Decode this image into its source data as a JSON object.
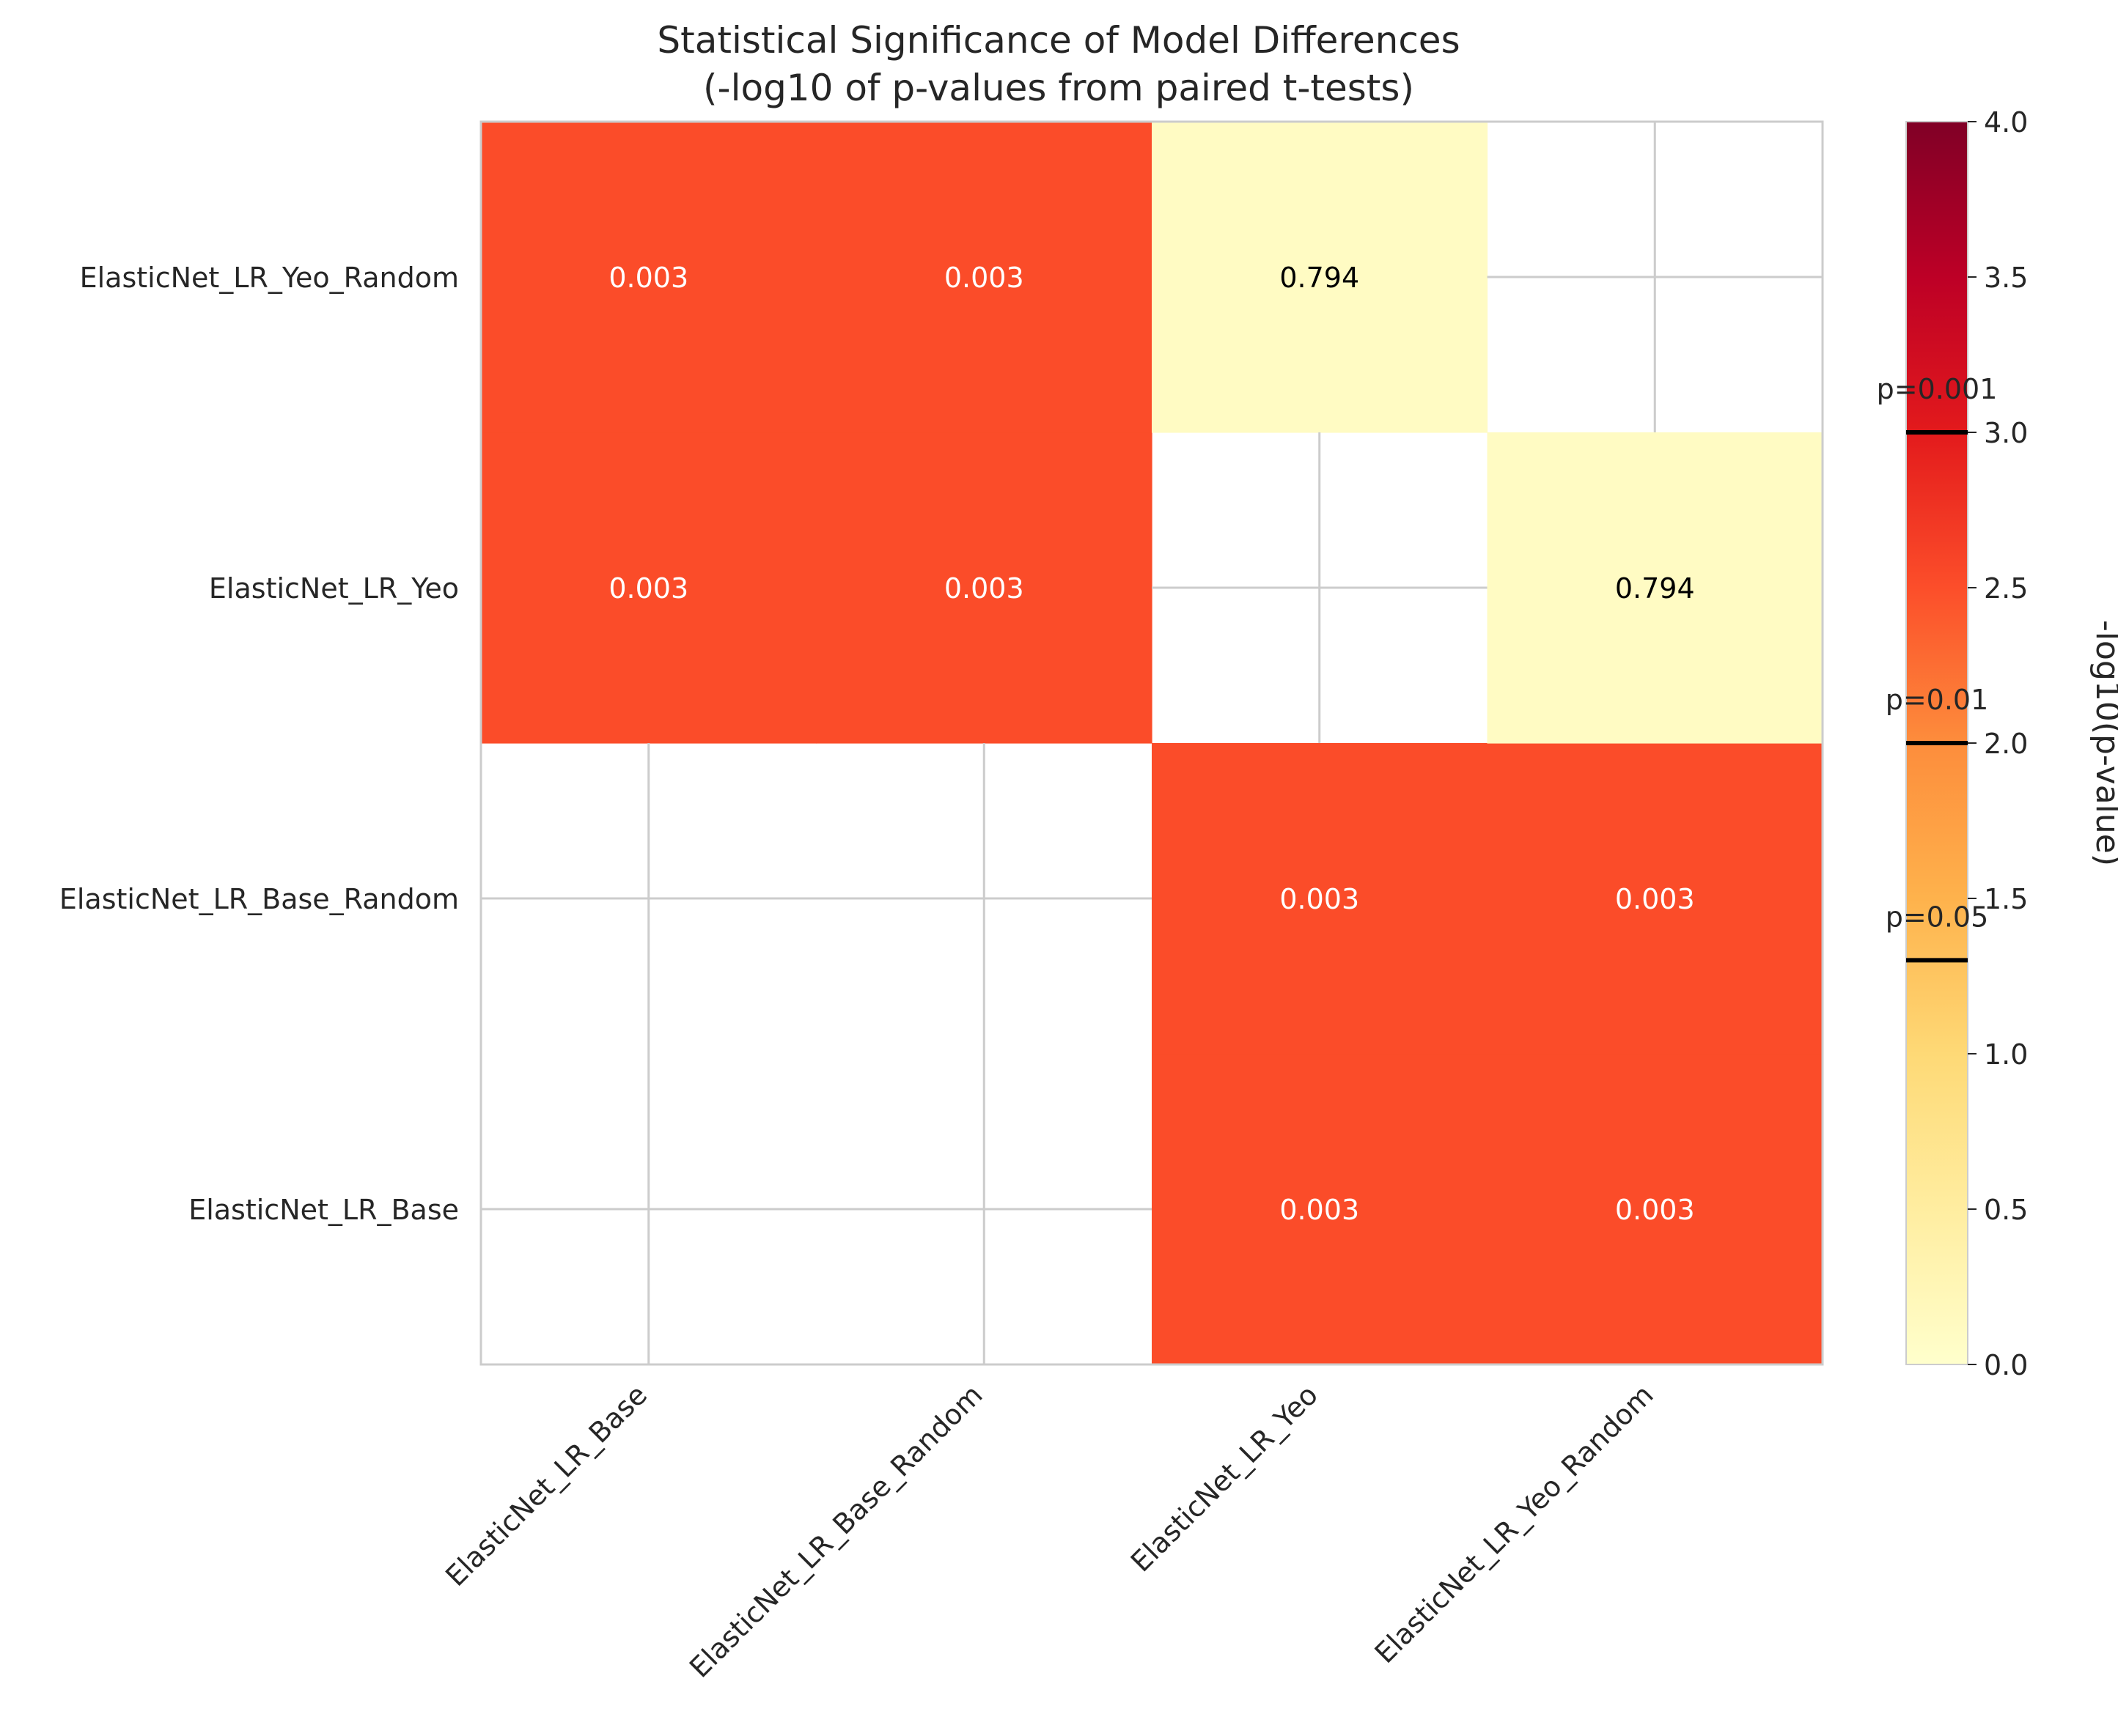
{
  "chart_data": {
    "type": "heatmap",
    "title_lines": [
      "Statistical Significance of Model Differences",
      "(-log10 of p-values from paired t-tests)"
    ],
    "x_categories": [
      "ElasticNet_LR_Base",
      "ElasticNet_LR_Base_Random",
      "ElasticNet_LR_Yeo",
      "ElasticNet_LR_Yeo_Random"
    ],
    "y_categories": [
      "ElasticNet_LR_Base",
      "ElasticNet_LR_Base_Random",
      "ElasticNet_LR_Yeo",
      "ElasticNet_LR_Yeo_Random"
    ],
    "cells": [
      {
        "x": "ElasticNet_LR_Yeo",
        "y": "ElasticNet_LR_Base",
        "p_value": "0.003",
        "value": 2.52
      },
      {
        "x": "ElasticNet_LR_Yeo_Random",
        "y": "ElasticNet_LR_Base",
        "p_value": "0.003",
        "value": 2.52
      },
      {
        "x": "ElasticNet_LR_Yeo",
        "y": "ElasticNet_LR_Base_Random",
        "p_value": "0.003",
        "value": 2.52
      },
      {
        "x": "ElasticNet_LR_Yeo_Random",
        "y": "ElasticNet_LR_Base_Random",
        "p_value": "0.003",
        "value": 2.52
      },
      {
        "x": "ElasticNet_LR_Base",
        "y": "ElasticNet_LR_Yeo",
        "p_value": "0.003",
        "value": 2.52
      },
      {
        "x": "ElasticNet_LR_Base_Random",
        "y": "ElasticNet_LR_Yeo",
        "p_value": "0.003",
        "value": 2.52
      },
      {
        "x": "ElasticNet_LR_Yeo_Random",
        "y": "ElasticNet_LR_Yeo",
        "p_value": "0.794",
        "value": 0.1
      },
      {
        "x": "ElasticNet_LR_Base",
        "y": "ElasticNet_LR_Yeo_Random",
        "p_value": "0.003",
        "value": 2.52
      },
      {
        "x": "ElasticNet_LR_Base_Random",
        "y": "ElasticNet_LR_Yeo_Random",
        "p_value": "0.003",
        "value": 2.52
      },
      {
        "x": "ElasticNet_LR_Yeo",
        "y": "ElasticNet_LR_Yeo_Random",
        "p_value": "0.794",
        "value": 0.1
      }
    ],
    "colorbar": {
      "label": "-log10(p-value)",
      "min": 0,
      "max": 4,
      "ticks": [
        "0.0",
        "0.5",
        "1.0",
        "1.5",
        "2.0",
        "2.5",
        "3.0",
        "3.5",
        "4.0"
      ],
      "colormap": [
        "#ffffcc",
        "#ffeda0",
        "#fed976",
        "#feb24c",
        "#fd8d3c",
        "#fc4e2a",
        "#e31a1c",
        "#bd0026",
        "#800026"
      ],
      "thresholds": [
        {
          "label": "p=0.05",
          "value": 1.301
        },
        {
          "label": "p=0.01",
          "value": 2.0
        },
        {
          "label": "p=0.001",
          "value": 3.0
        }
      ]
    },
    "grid": true,
    "colors": {
      "cell_text_dark": "#000000",
      "cell_text_light": "#ffffff",
      "grid": "#cccccc",
      "text": "#262626"
    }
  }
}
